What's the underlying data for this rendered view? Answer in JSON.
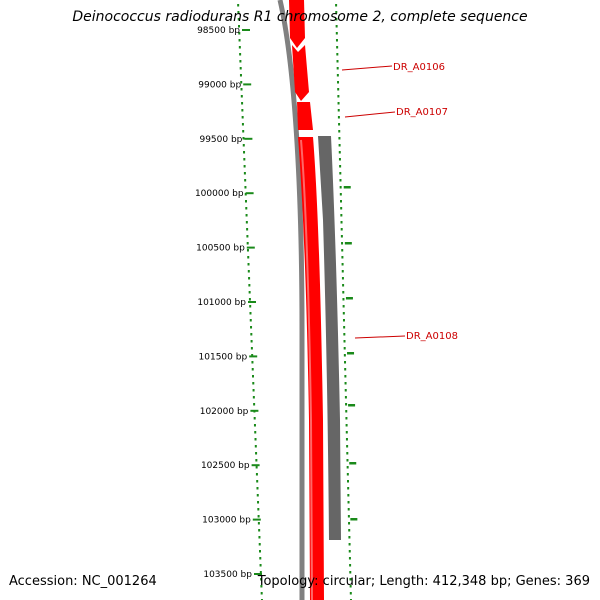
{
  "header": {
    "title": "Deinococcus radiodurans R1 chromosome 2, complete sequence"
  },
  "footer": {
    "accession": "Accession: NC_001264",
    "info": "Topology: circular; Length: 412,348 bp; Genes: 369"
  },
  "ruler": {
    "ticks": [
      {
        "label": "98500 bp",
        "bp": 98500
      },
      {
        "label": "99000 bp",
        "bp": 99000
      },
      {
        "label": "99500 bp",
        "bp": 99500
      },
      {
        "label": "100000 bp",
        "bp": 100000
      },
      {
        "label": "100500 bp",
        "bp": 100500
      },
      {
        "label": "101000 bp",
        "bp": 101000
      },
      {
        "label": "101500 bp",
        "bp": 101500
      },
      {
        "label": "102000 bp",
        "bp": 102000
      },
      {
        "label": "102500 bp",
        "bp": 102500
      },
      {
        "label": "103000 bp",
        "bp": 103000
      },
      {
        "label": "103500 bp",
        "bp": 103500
      }
    ]
  },
  "genes": [
    {
      "label": "DR_A0106",
      "color": "#ff0000"
    },
    {
      "label": "DR_A0107",
      "color": "#ff0000"
    },
    {
      "label": "DR_A0108",
      "color": "#666666"
    }
  ],
  "colors": {
    "forward_gene": "#ff0000",
    "reverse_gene": "#666666",
    "backbone": "#808080",
    "gc_skew": "#1a8a1a",
    "label_text": "#cc0000",
    "label_line": "#cc0000"
  }
}
